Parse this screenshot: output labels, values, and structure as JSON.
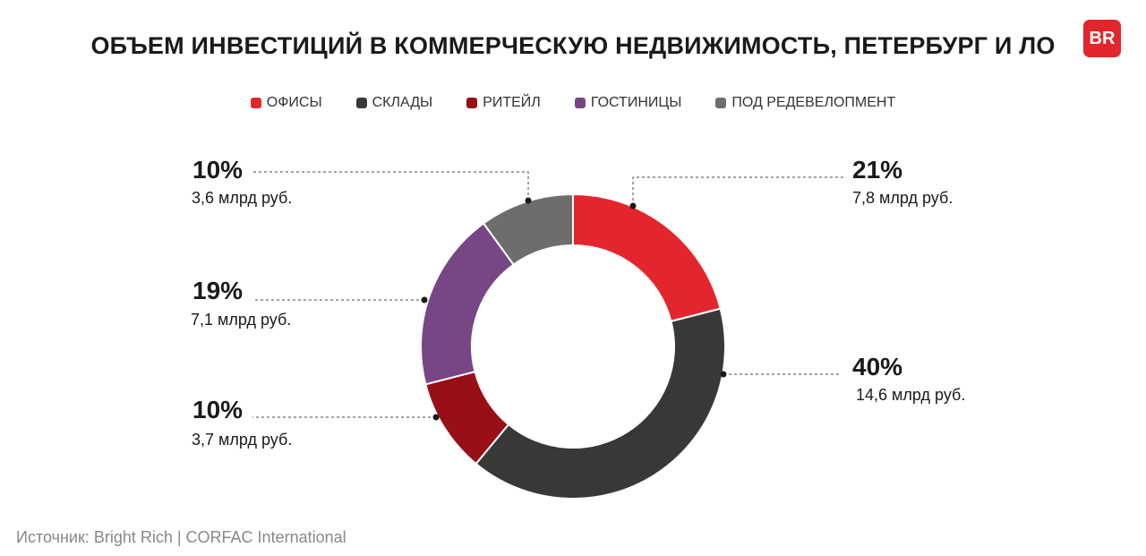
{
  "title": "ОБЪЕМ ИНВЕСТИЦИЙ В КОММЕРЧЕСКУЮ НЕДВИЖИМОСТЬ, ПЕТЕРБУРГ И ЛО",
  "logo_text": "BR",
  "source": "Источник: Bright Rich | CORFAC International",
  "chart_data": {
    "type": "pie",
    "variant": "donut",
    "title": "ОБЪЕМ ИНВЕСТИЦИЙ В КОММЕРЧЕСКУЮ НЕДВИЖИМОСТЬ, ПЕТЕРБУРГ И ЛО",
    "legend_placement": "top",
    "categories": [
      "ОФИСЫ",
      "СКЛАДЫ",
      "РИТЕЙЛ",
      "ГОСТИНИЦЫ",
      "ПОД РЕДЕВЕЛОПМЕНТ"
    ],
    "values": [
      21,
      40,
      10,
      19,
      10
    ],
    "percent_labels": [
      "21%",
      "40%",
      "10%",
      "19%",
      "10%"
    ],
    "amount_labels": [
      "7,8 млрд руб.",
      "14,6 млрд руб.",
      "3,7 млрд руб.",
      "7,1 млрд руб.",
      "3,6 млрд руб."
    ],
    "amounts_bln_rub": [
      7.8,
      14.6,
      3.7,
      7.1,
      3.6
    ],
    "colors": [
      "#e3262e",
      "#383836",
      "#980f17",
      "#774685",
      "#6e6d6b"
    ]
  }
}
